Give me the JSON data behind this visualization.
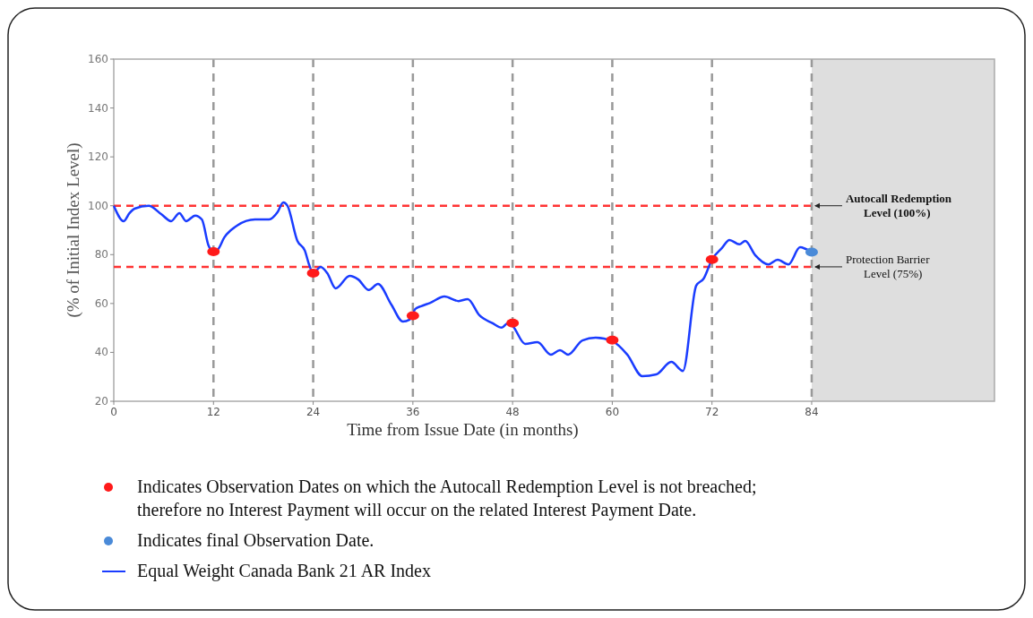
{
  "chart_data": {
    "type": "line",
    "xlabel": "Time from Issue Date (in months)",
    "ylabel": "(% of Initial Index Level)",
    "xlim": [
      0,
      106
    ],
    "ylim": [
      20,
      160
    ],
    "xticks": [
      0,
      12,
      24,
      36,
      48,
      60,
      72,
      84
    ],
    "yticks": [
      20,
      40,
      60,
      80,
      100,
      120,
      140,
      160
    ],
    "grid": "x",
    "legend": "bottom",
    "ref_lines": [
      {
        "axis": "y",
        "value": 100,
        "label": "Autocall Redemption Level (100%)",
        "color": "#ff3333",
        "line_style": "dashed"
      },
      {
        "axis": "y",
        "value": 75,
        "label": "Protection Barrier Level (75%)",
        "color": "#ff3333",
        "line_style": "dashed"
      }
    ],
    "bands": [
      {
        "axis": "x",
        "from": 84,
        "to": 106,
        "color": "#dedede"
      }
    ],
    "series": [
      {
        "type": "scatter",
        "name": "Indicates Observation Dates on which the Autocall Redemption Level is not breached; therefore no Interest Payment will occur on the related Interest Payment Date.",
        "color": "#ff1a1a",
        "marker": "circle",
        "x": [
          12,
          24,
          36,
          48,
          60,
          72
        ],
        "values": [
          81.2,
          72.4,
          55,
          52,
          45,
          78
        ]
      },
      {
        "type": "scatter",
        "name": "Indicates final Observation Date.",
        "color": "#4a8ad8",
        "marker": "circle",
        "x": [
          84
        ],
        "values": [
          81
        ]
      },
      {
        "name": "Equal Weight Canada Bank 21 AR Index",
        "color": "#1a3cff",
        "marker": "none",
        "line_style": "solid",
        "x": [
          0,
          1.2,
          1.9,
          2.5,
          4.2,
          5.7,
          6.9,
          7.9,
          8.7,
          9.8,
          10.6,
          11.4,
          11.9,
          12.5,
          13.3,
          14.9,
          17,
          18.7,
          19.7,
          20.4,
          20.9,
          22.1,
          23,
          23.5,
          24,
          24.9,
          25.7,
          26.7,
          28.4,
          29.4,
          30.7,
          31.8,
          33.4,
          34.8,
          35.6,
          36.3,
          37,
          38.1,
          39.8,
          41.5,
          42.6,
          44,
          45.6,
          46.7,
          47.4,
          48,
          49.5,
          51,
          52.6,
          53.7,
          54.7,
          56.4,
          58,
          60,
          61.8,
          63.6,
          65.3,
          67.1,
          68.5,
          70.1,
          71,
          72,
          73.2,
          74.1,
          75.3,
          76,
          77.2,
          78.8,
          79.9,
          81.2,
          82.6,
          83.3,
          84
        ],
        "values": [
          100,
          93.7,
          97,
          98.8,
          100,
          96.6,
          93.7,
          97,
          93.7,
          96,
          94.4,
          83.8,
          81.2,
          82,
          87,
          92,
          94.4,
          94.4,
          97.3,
          101.4,
          100,
          85.6,
          81.6,
          76,
          72.4,
          75,
          72.4,
          66.2,
          71.3,
          69.9,
          65.5,
          68,
          59.6,
          52.6,
          53.4,
          57.8,
          58.9,
          60.3,
          62.9,
          61,
          61.8,
          55.2,
          51.9,
          50.1,
          51.9,
          50.8,
          43.5,
          44.2,
          39.1,
          40.9,
          39.1,
          44.9,
          46,
          44.6,
          39.1,
          30.3,
          31,
          36.1,
          32.4,
          67.3,
          70.2,
          78,
          82.7,
          86,
          84.2,
          85.6,
          79.8,
          76,
          77.9,
          76,
          83,
          82.3,
          81.2
        ]
      }
    ]
  }
}
